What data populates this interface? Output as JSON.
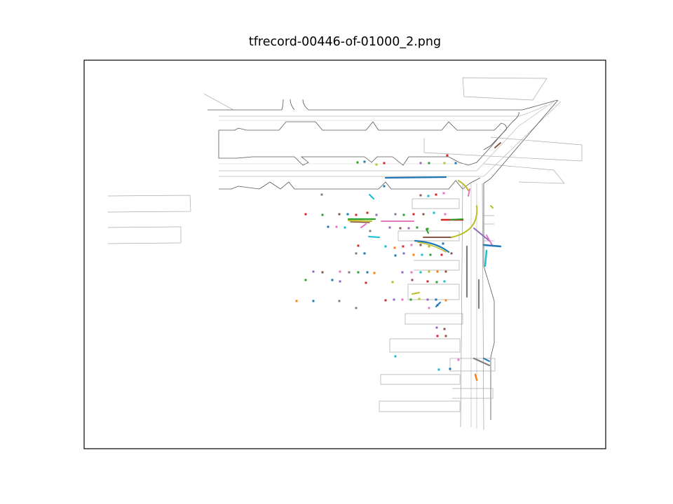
{
  "title": "tfrecord-00446-of-01000_2.png",
  "colors": {
    "road_edge": "#444444",
    "lane_line": "#bbbbbb",
    "frame": "#000000",
    "palette": [
      "#1f77b4",
      "#ff7f0e",
      "#2ca02c",
      "#d62728",
      "#9467bd",
      "#8c564b",
      "#e377c2",
      "#7f7f7f",
      "#bcbd22",
      "#17becf"
    ]
  }
}
